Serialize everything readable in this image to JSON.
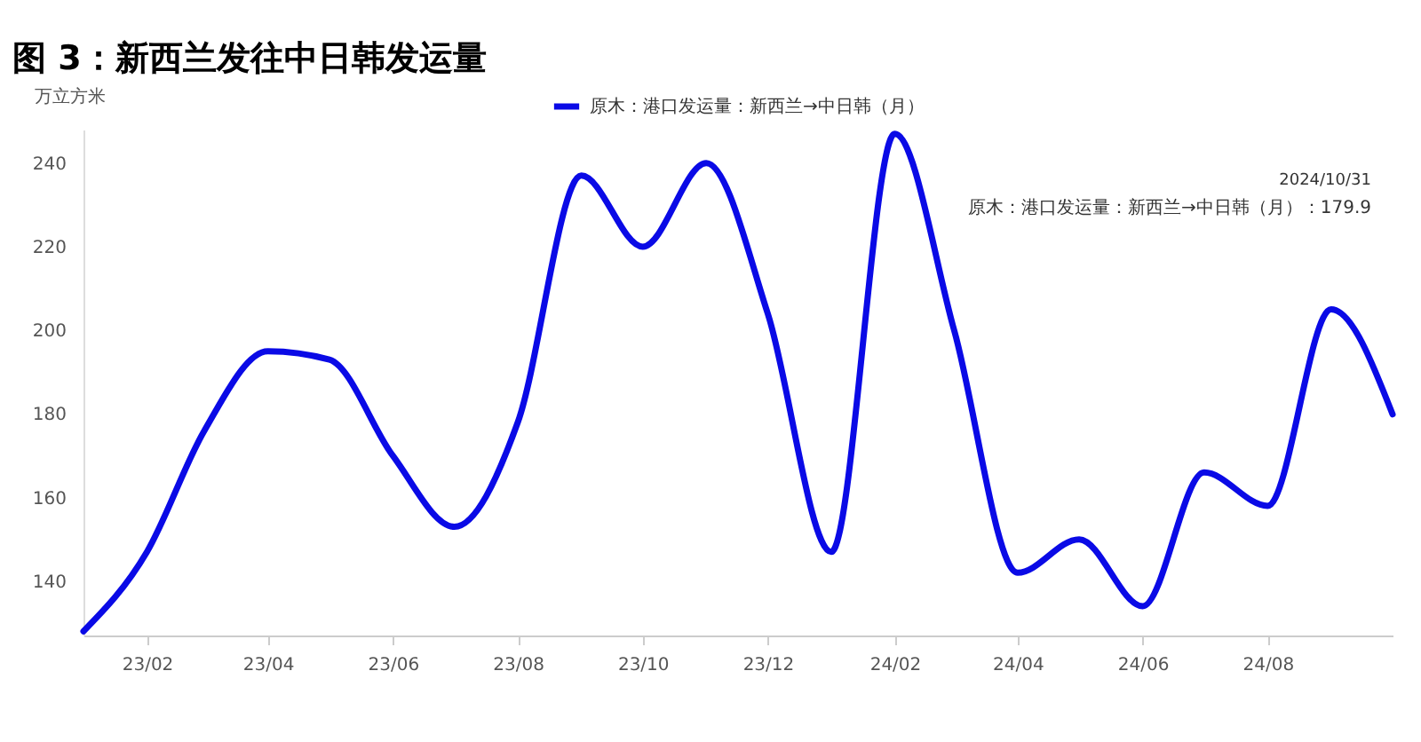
{
  "chart_data": {
    "type": "line",
    "title": "图 3：新西兰发往中日韩发运量",
    "ylabel": "万立方米",
    "x": [
      "2023-01",
      "2023-02",
      "2023-03",
      "2023-04",
      "2023-05",
      "2023-06",
      "2023-07",
      "2023-08",
      "2023-09",
      "2023-10",
      "2023-11",
      "2023-12",
      "2024-01",
      "2024-02",
      "2024-03",
      "2024-04",
      "2024-05",
      "2024-06",
      "2024-07",
      "2024-08",
      "2024-09",
      "2024-10"
    ],
    "series": [
      {
        "name": "原木：港口发运量：新西兰→中日韩（月）",
        "color": "#0a0ae6",
        "values": [
          128,
          147,
          176,
          195,
          193,
          170,
          153,
          178,
          237,
          220,
          240,
          204,
          147,
          247,
          200,
          142,
          150,
          134,
          166,
          158,
          205,
          179.9
        ]
      }
    ],
    "xlim": [
      "2023-01",
      "2024-10"
    ],
    "xticks": [
      {
        "value": "2023-02",
        "label": "23/02"
      },
      {
        "value": "2023-04",
        "label": "23/04"
      },
      {
        "value": "2023-06",
        "label": "23/06"
      },
      {
        "value": "2023-08",
        "label": "23/08"
      },
      {
        "value": "2023-10",
        "label": "23/10"
      },
      {
        "value": "2023-12",
        "label": "23/12"
      },
      {
        "value": "2024-02",
        "label": "24/02"
      },
      {
        "value": "2024-04",
        "label": "24/04"
      },
      {
        "value": "2024-06",
        "label": "24/06"
      },
      {
        "value": "2024-08",
        "label": "24/08"
      }
    ],
    "ylim": [
      127,
      248
    ],
    "yticks": [
      140,
      160,
      180,
      200,
      220,
      240
    ],
    "legend": "top",
    "marker": "none",
    "line_style": "solid",
    "annotations": [
      "2024/10/31",
      "原木：港口发运量：新西兰→中日韩（月）：179.9"
    ]
  }
}
